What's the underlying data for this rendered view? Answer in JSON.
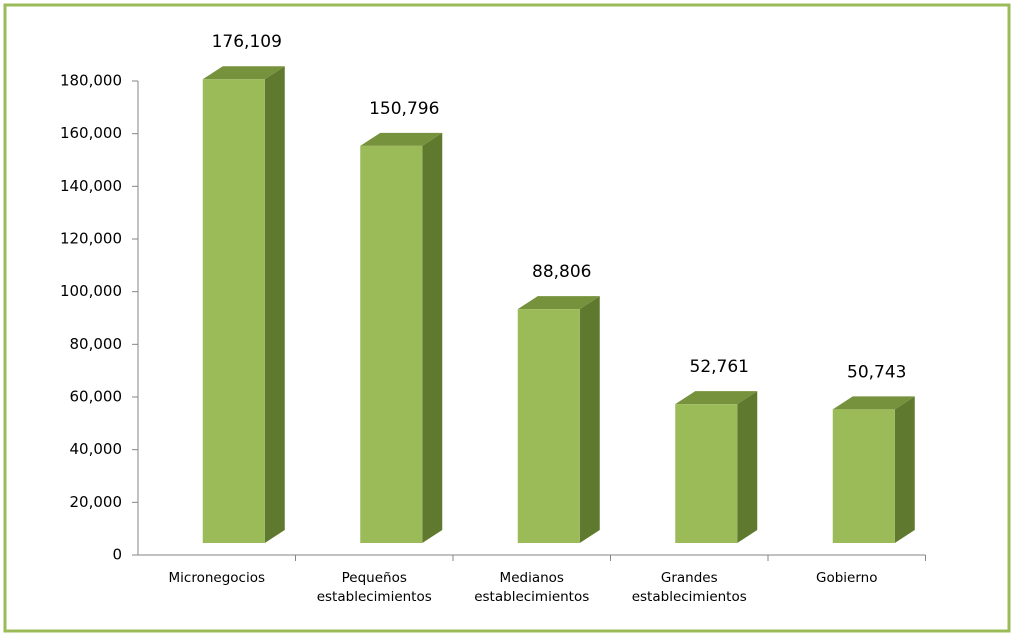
{
  "chart_data": {
    "type": "bar",
    "categories": [
      "Micronegocios",
      "Pequeños establecimientos",
      "Medianos establecimientos",
      "Grandes establecimientos",
      "Gobierno"
    ],
    "values": [
      176109,
      150796,
      88806,
      52761,
      50743
    ],
    "value_labels": [
      "176,109",
      "150,796",
      "88,806",
      "52,761",
      "50,743"
    ],
    "color": "#9bbb59",
    "ylim": [
      0,
      180000
    ],
    "yticks": [
      0,
      {
        "value": 20000,
        "label": "20,000"
      },
      {
        "value": 40000,
        "label": "40,000"
      },
      {
        "value": 60000,
        "label": "60,000"
      },
      {
        "value": 80000,
        "label": "80,000"
      },
      {
        "value": 100000,
        "label": "100,000"
      },
      {
        "value": 120000,
        "label": "120,000"
      },
      {
        "value": 140000,
        "label": "140,000"
      },
      {
        "value": 160000,
        "label": "160,000"
      },
      {
        "value": 180000,
        "label": "180,000"
      }
    ],
    "grid": false
  }
}
